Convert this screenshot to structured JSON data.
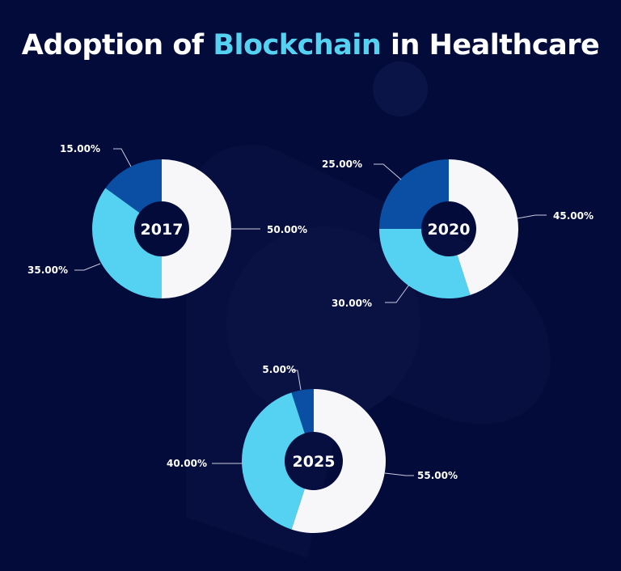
{
  "title": {
    "part1": "Adoption of ",
    "highlight": "Blockchain",
    "part2": " in Healthcare"
  },
  "colors": {
    "background": "#030b3a",
    "white_segment": "#f7f7f9",
    "light_blue_segment": "#55d2f2",
    "dark_blue_segment": "#0a4fa3",
    "highlight": "#55d2f2"
  },
  "chart_data": [
    {
      "type": "pie",
      "donut": true,
      "center_label": "2017",
      "values": [
        50,
        35,
        15
      ],
      "labels": [
        "50.00%",
        "35.00%",
        "15.00%"
      ]
    },
    {
      "type": "pie",
      "donut": true,
      "center_label": "2020",
      "values": [
        45,
        30,
        25
      ],
      "labels": [
        "45.00%",
        "30.00%",
        "25.00%"
      ]
    },
    {
      "type": "pie",
      "donut": true,
      "center_label": "2025",
      "values": [
        55,
        40,
        5
      ],
      "labels": [
        "55.00%",
        "40.00%",
        "5.00%"
      ]
    }
  ]
}
